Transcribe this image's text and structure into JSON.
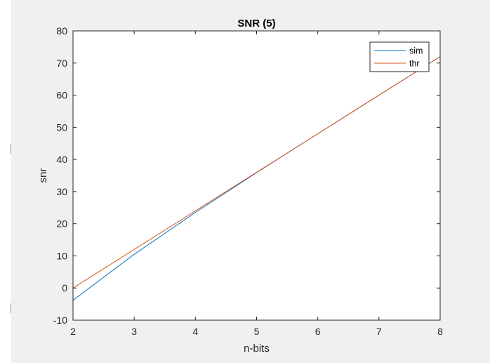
{
  "chart_data": {
    "type": "line",
    "title": "SNR (5)",
    "xlabel": "n-bits",
    "ylabel": "snr",
    "xlim": [
      2,
      8
    ],
    "ylim": [
      -10,
      80
    ],
    "xticks": [
      2,
      3,
      4,
      5,
      6,
      7,
      8
    ],
    "yticks": [
      -10,
      0,
      10,
      20,
      30,
      40,
      50,
      60,
      70,
      80
    ],
    "grid": false,
    "legend_position": "top-right",
    "series": [
      {
        "name": "sim",
        "color": "#0072bd",
        "x": [
          2,
          3,
          4,
          5,
          6,
          7,
          8
        ],
        "y": [
          -3.8,
          10.5,
          23.5,
          35.9,
          48.0,
          60.0,
          72.0
        ]
      },
      {
        "name": "thr",
        "color": "#d95319",
        "x": [
          2,
          3,
          4,
          5,
          6,
          7,
          8
        ],
        "y": [
          0.0,
          12.0,
          24.0,
          36.0,
          48.0,
          60.0,
          72.0
        ]
      }
    ]
  }
}
